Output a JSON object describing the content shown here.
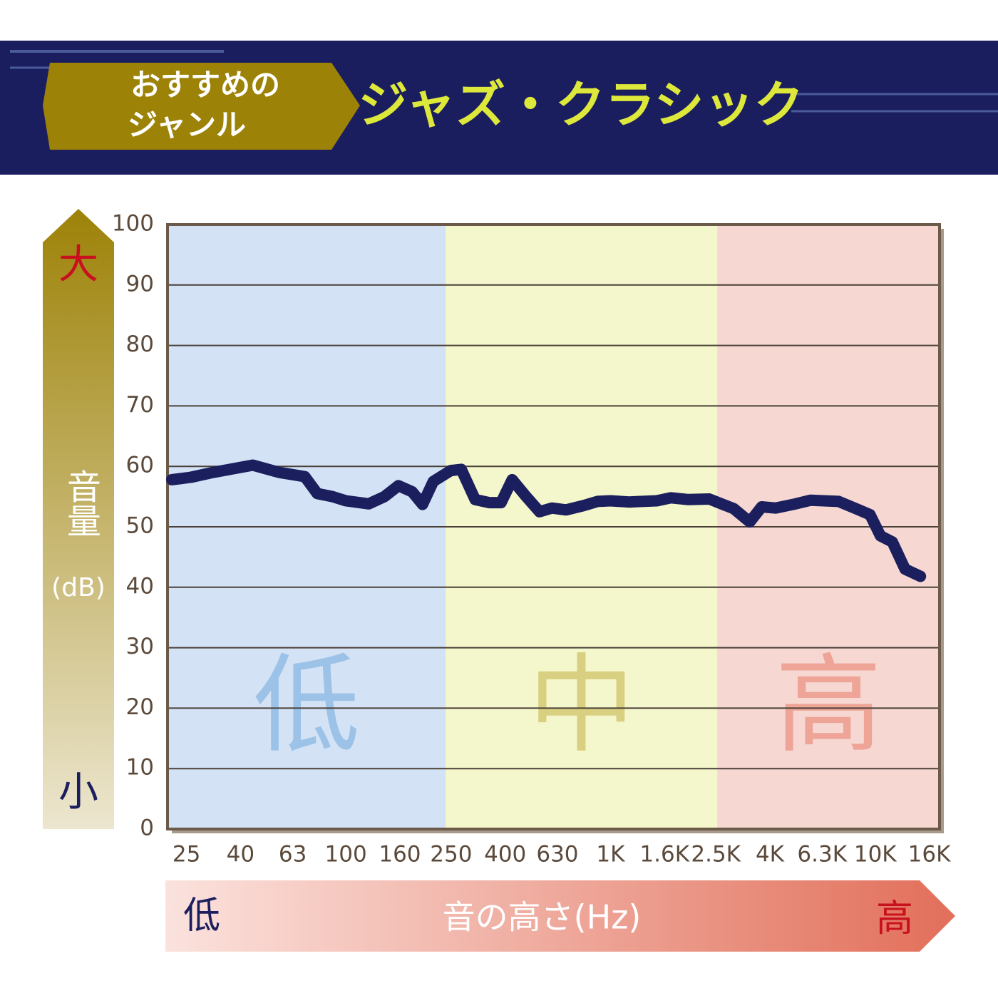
{
  "header": {
    "badge": [
      "おすすめの",
      "ジャンル"
    ],
    "title": "ジャズ・クラシック"
  },
  "chart_data": {
    "type": "line",
    "x_label": "音の高さ(Hz)",
    "x_axis_ends": {
      "low": "低",
      "high": "高"
    },
    "y_label": [
      "音量",
      "(dB)"
    ],
    "y_axis_ends": {
      "high": "大",
      "low": "小"
    },
    "xscale": "log",
    "xlim": [
      21.2,
      17500
    ],
    "xticks": [
      25,
      40,
      63,
      100,
      160,
      250,
      400,
      630,
      {
        "value": 1000,
        "label": "1K"
      },
      {
        "value": 1600,
        "label": "1.6K"
      },
      {
        "value": 2500,
        "label": "2.5K"
      },
      {
        "value": 4000,
        "label": "4K"
      },
      {
        "value": 6300,
        "label": "6.3K"
      },
      {
        "value": 10000,
        "label": "10K"
      },
      {
        "value": 16000,
        "label": "16K"
      }
    ],
    "ylim": [
      0,
      100
    ],
    "yticks": [
      0,
      10,
      20,
      30,
      40,
      50,
      60,
      70,
      80,
      90,
      100
    ],
    "grid": true,
    "bands": [
      {
        "label": "低",
        "range": [
          21.2,
          238
        ],
        "color": "#d3e2f4",
        "label_color": "#9cc2e8"
      },
      {
        "label": "中",
        "range": [
          238,
          2540
        ],
        "color": "#f4f7cb",
        "label_color": "#d8cf80"
      },
      {
        "label": "高",
        "range": [
          2540,
          17500
        ],
        "color": "#f6d7d2",
        "label_color": "#eea497"
      }
    ],
    "color": "#1b1f5e",
    "x": [
      22,
      26,
      31.5,
      44.5,
      56,
      70,
      78,
      89,
      100,
      122,
      140,
      158,
      178,
      195,
      214,
      249,
      273,
      308,
      348,
      386,
      425,
      480,
      539,
      601,
      679,
      790,
      893,
      1000,
      1174,
      1497,
      1690,
      1968,
      2361,
      2921,
      3358,
      3724,
      4207,
      4899,
      5700,
      7270,
      8468,
      9559,
      10469,
      11605,
      12966,
      14820
    ],
    "values": [
      57.8,
      58.2,
      59,
      60.2,
      59,
      58.3,
      55.5,
      55,
      54.3,
      53.8,
      55,
      56.8,
      55.8,
      53.7,
      57.5,
      59.3,
      59.5,
      54.5,
      54,
      54,
      57.8,
      55,
      52.5,
      53.1,
      52.8,
      53.5,
      54.2,
      54.3,
      54.1,
      54.3,
      54.8,
      54.5,
      54.6,
      53,
      50.8,
      53.3,
      53.1,
      53.7,
      54.4,
      54.2,
      53,
      52,
      48.5,
      47.5,
      43,
      41.8
    ]
  }
}
